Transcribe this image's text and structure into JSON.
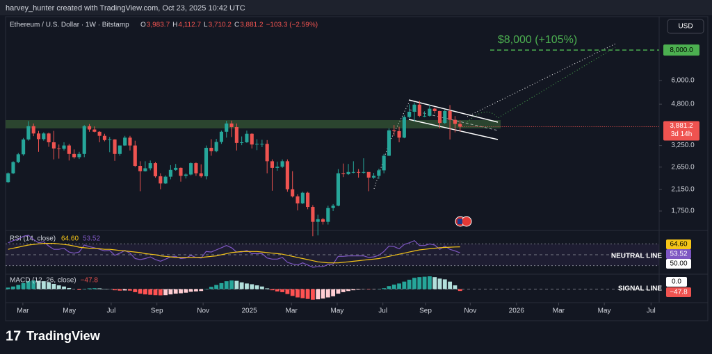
{
  "header": {
    "title": "harvey_hunter created with TradingView.com, Oct 23, 2025 10:42 UTC",
    "brand": "TradingView"
  },
  "chart_data": {
    "type": "candlestick",
    "title": "Ethereum / U.S. Dollar · 1W · Bitstamp",
    "ohlc_legend": [
      {
        "key": "O",
        "text": "3,983.7"
      },
      {
        "key": "H",
        "text": "4,112.7"
      },
      {
        "key": "L",
        "text": "3,710.2"
      },
      {
        "key": "C",
        "text": "3,881.2"
      }
    ],
    "change": "−103.3 (−2.59%)",
    "currency": "USD",
    "categories": [
      null,
      null,
      null,
      null,
      null,
      null,
      null,
      null,
      null,
      null,
      null,
      null,
      null,
      null,
      null,
      null,
      null,
      null,
      null,
      null,
      null,
      null,
      null,
      null,
      null,
      null,
      null,
      null,
      null,
      null,
      null,
      null,
      null,
      null,
      null,
      null,
      null,
      null,
      null,
      null,
      null,
      null,
      null,
      null,
      null,
      null,
      null,
      null,
      null,
      null,
      null,
      null,
      null,
      null,
      null,
      null,
      null,
      null,
      null,
      null,
      null,
      null,
      null,
      null,
      null,
      null,
      null,
      null,
      null,
      null,
      null,
      null,
      null,
      null,
      null,
      null,
      null,
      null,
      null,
      null,
      null,
      null,
      null,
      null,
      null,
      null,
      null,
      null,
      null,
      null
    ],
    "ohlc": [
      [
        2300,
        2520,
        2280,
        2500
      ],
      [
        2500,
        2800,
        2480,
        2780
      ],
      [
        2780,
        3030,
        2750,
        2990
      ],
      [
        2990,
        3490,
        2950,
        3440
      ],
      [
        3440,
        4090,
        3400,
        3900
      ],
      [
        3900,
        4000,
        3550,
        3640
      ],
      [
        3640,
        3730,
        3060,
        3450
      ],
      [
        3450,
        3680,
        3400,
        3640
      ],
      [
        3640,
        3670,
        3210,
        3350
      ],
      [
        3350,
        3730,
        2850,
        3160
      ],
      [
        3160,
        3280,
        2870,
        3150
      ],
      [
        3150,
        3350,
        3100,
        3250
      ],
      [
        3250,
        3300,
        2820,
        3000
      ],
      [
        3000,
        3130,
        2870,
        2910
      ],
      [
        2910,
        3060,
        2860,
        3000
      ],
      [
        3000,
        3940,
        2910,
        3900
      ],
      [
        3900,
        3980,
        3700,
        3780
      ],
      [
        3780,
        3890,
        3680,
        3700
      ],
      [
        3700,
        3720,
        3350,
        3560
      ],
      [
        3560,
        3630,
        3380,
        3420
      ],
      [
        3420,
        3520,
        3050,
        3440
      ],
      [
        3440,
        3450,
        2810,
        3000
      ],
      [
        3000,
        3250,
        2950,
        3250
      ],
      [
        3250,
        3560,
        3240,
        3500
      ],
      [
        3500,
        3560,
        3100,
        3250
      ],
      [
        3250,
        3400,
        2650,
        2680
      ],
      [
        2680,
        2800,
        2110,
        2550
      ],
      [
        2550,
        2800,
        2540,
        2620
      ],
      [
        2620,
        2820,
        2570,
        2750
      ],
      [
        2750,
        2780,
        2400,
        2430
      ],
      [
        2430,
        2500,
        2150,
        2270
      ],
      [
        2270,
        2450,
        2260,
        2420
      ],
      [
        2420,
        2700,
        2360,
        2580
      ],
      [
        2580,
        2730,
        2560,
        2630
      ],
      [
        2630,
        2640,
        2310,
        2440
      ],
      [
        2440,
        2500,
        2380,
        2470
      ],
      [
        2470,
        2770,
        2450,
        2750
      ],
      [
        2750,
        2770,
        2440,
        2500
      ],
      [
        2500,
        2720,
        2400,
        2430
      ],
      [
        2430,
        3250,
        2360,
        3180
      ],
      [
        3180,
        3450,
        2950,
        3080
      ],
      [
        3080,
        3460,
        3050,
        3360
      ],
      [
        3360,
        3740,
        3300,
        3700
      ],
      [
        3700,
        4100,
        3500,
        4000
      ],
      [
        4000,
        4110,
        3520,
        3870
      ],
      [
        3870,
        4000,
        3100,
        3330
      ],
      [
        3330,
        3540,
        3260,
        3350
      ],
      [
        3350,
        3740,
        3330,
        3630
      ],
      [
        3630,
        3650,
        3160,
        3280
      ],
      [
        3280,
        3450,
        3110,
        3300
      ],
      [
        3300,
        3430,
        3200,
        3300
      ],
      [
        3300,
        3420,
        2500,
        2800
      ],
      [
        2800,
        2850,
        2120,
        2630
      ],
      [
        2630,
        2790,
        2560,
        2660
      ],
      [
        2660,
        2850,
        2630,
        2800
      ],
      [
        2800,
        2850,
        2100,
        2150
      ],
      [
        2150,
        2550,
        1990,
        2010
      ],
      [
        2010,
        2050,
        1760,
        1880
      ],
      [
        1880,
        2100,
        1870,
        2080
      ],
      [
        2080,
        2100,
        1780,
        1820
      ],
      [
        1820,
        1850,
        1380,
        1580
      ],
      [
        1580,
        1690,
        1390,
        1620
      ],
      [
        1620,
        1640,
        1540,
        1580
      ],
      [
        1580,
        1840,
        1540,
        1800
      ],
      [
        1800,
        1870,
        1750,
        1840
      ],
      [
        1840,
        2600,
        1830,
        2500
      ],
      [
        2500,
        2740,
        2410,
        2480
      ],
      [
        2480,
        2730,
        2460,
        2530
      ],
      [
        2530,
        2800,
        2500,
        2530
      ],
      [
        2530,
        2600,
        2400,
        2520
      ],
      [
        2520,
        2880,
        2490,
        2530
      ],
      [
        2530,
        2530,
        2110,
        2400
      ],
      [
        2400,
        2510,
        2370,
        2440
      ],
      [
        2440,
        2610,
        2370,
        2570
      ],
      [
        2570,
        3000,
        2500,
        2950
      ],
      [
        2950,
        3820,
        2940,
        3750
      ],
      [
        3750,
        3940,
        3560,
        3720
      ],
      [
        3720,
        3880,
        3350,
        3500
      ],
      [
        3500,
        4330,
        3480,
        4250
      ],
      [
        4250,
        4790,
        4210,
        4470
      ],
      [
        4470,
        4880,
        4080,
        4780
      ],
      [
        4780,
        4950,
        4250,
        4300
      ],
      [
        4300,
        4490,
        4250,
        4300
      ],
      [
        4300,
        4770,
        4270,
        4600
      ],
      [
        4600,
        4650,
        4400,
        4500
      ],
      [
        4500,
        4510,
        3820,
        4020
      ],
      [
        4020,
        4560,
        3980,
        4500
      ],
      [
        4500,
        4760,
        3440,
        4140
      ],
      [
        4140,
        4290,
        3680,
        3985
      ],
      [
        3983.7,
        4112.7,
        3710.2,
        3881.2
      ]
    ],
    "up_color": "#26a69a",
    "down_color": "#ef5350",
    "log_scale": true,
    "xlim": [
      -1.6,
      128.2
    ],
    "xticks": [
      {
        "value": 2.9,
        "label": "Mar"
      },
      {
        "value": 12.05,
        "label": "May"
      },
      {
        "value": 20.3,
        "label": "Jul"
      },
      {
        "value": 29.3,
        "label": "Sep"
      },
      {
        "value": 38.4,
        "label": "Nov"
      },
      {
        "value": 47.5,
        "label": "2025"
      },
      {
        "value": 55.8,
        "label": "Mar"
      },
      {
        "value": 64.8,
        "label": "May"
      },
      {
        "value": 73.8,
        "label": "Jul"
      },
      {
        "value": 82.2,
        "label": "Sep"
      },
      {
        "value": 91,
        "label": "Nov"
      },
      {
        "value": 100.1,
        "label": "2026"
      },
      {
        "value": 108.4,
        "label": "Mar"
      },
      {
        "value": 117.4,
        "label": "May"
      },
      {
        "value": 126.6,
        "label": "Jul"
      }
    ],
    "ylim": [
      1476,
      10900
    ],
    "yticks": [
      {
        "value": 6000,
        "label": "6,000.0"
      },
      {
        "value": 4800,
        "label": "4,800.0"
      },
      {
        "value": 3250,
        "label": "3,250.0"
      },
      {
        "value": 2650,
        "label": "2,650.0"
      },
      {
        "value": 2150,
        "label": "2,150.0"
      },
      {
        "value": 1750,
        "label": "1,750.0"
      }
    ],
    "last_price": {
      "value": 3881.2,
      "label": "3,881.2",
      "countdown": "3d 14h"
    },
    "target": {
      "value": 8000,
      "label": "8,000.0",
      "annotation": "$8,000 (+105%)",
      "color": "#4caf50"
    },
    "rsi": {
      "title": "RSI (14, close)",
      "ylim": [
        16.7,
        91
      ],
      "bands": [
        30,
        70
      ],
      "series": [
        {
          "color": "#7e57c2",
          "last_label": "53.52",
          "values": [
            72,
            76,
            79,
            84,
            86,
            78,
            72,
            74,
            66,
            60,
            60,
            62,
            55,
            53,
            55,
            68,
            65,
            63,
            60,
            57,
            58,
            49,
            53,
            58,
            53,
            43,
            41,
            43,
            46,
            41,
            38,
            42,
            46,
            47,
            43,
            44,
            49,
            45,
            44,
            56,
            55,
            59,
            63,
            67,
            63,
            55,
            55,
            58,
            52,
            52,
            52,
            44,
            42,
            42,
            45,
            36,
            33,
            31,
            35,
            31,
            27,
            28,
            28,
            32,
            33,
            47,
            47,
            48,
            48,
            48,
            48,
            45,
            46,
            49,
            56,
            66,
            65,
            61,
            69,
            72,
            76,
            67,
            67,
            70,
            68,
            60,
            66,
            60,
            57,
            53.52
          ]
        },
        {
          "color": "#f5c518",
          "last_label": "64.60",
          "values": [
            60,
            62,
            64,
            66,
            68,
            69,
            70,
            71,
            71,
            71,
            70,
            69,
            68,
            66,
            64,
            63,
            62,
            62,
            61,
            60,
            60,
            59,
            58,
            57,
            56,
            55,
            54,
            52,
            51,
            50,
            48,
            47,
            46,
            45,
            45,
            45,
            45,
            45,
            45,
            46,
            47,
            48,
            50,
            52,
            54,
            55,
            56,
            56,
            56,
            56,
            55,
            54,
            53,
            52,
            51,
            49,
            47,
            45,
            43,
            41,
            39,
            37,
            36,
            35,
            35,
            35,
            36,
            37,
            38,
            39,
            40,
            41,
            42,
            43,
            45,
            47,
            49,
            51,
            53,
            55,
            57,
            59,
            60,
            61,
            62,
            63,
            63.5,
            64,
            64.3,
            64.6
          ]
        }
      ],
      "level": {
        "value": 50,
        "label": "50.00",
        "name": "NEUTRAL LINE"
      }
    },
    "macd": {
      "title": "MACD (12, 26, close)",
      "ylim": [
        -340,
        360
      ],
      "last_label": "−47.8",
      "values": [
        40,
        70,
        110,
        160,
        210,
        230,
        220,
        210,
        180,
        140,
        100,
        70,
        30,
        0,
        -20,
        10,
        20,
        25,
        20,
        10,
        5,
        -30,
        -40,
        -35,
        -40,
        -80,
        -120,
        -140,
        -150,
        -160,
        -165,
        -160,
        -140,
        -120,
        -110,
        -95,
        -70,
        -60,
        -50,
        10,
        60,
        110,
        160,
        210,
        230,
        220,
        180,
        150,
        130,
        100,
        70,
        20,
        -30,
        -60,
        -80,
        -130,
        -180,
        -220,
        -240,
        -260,
        -280,
        -270,
        -250,
        -220,
        -190,
        -120,
        -80,
        -50,
        -30,
        -15,
        -5,
        -10,
        -5,
        5,
        25,
        80,
        120,
        150,
        200,
        250,
        300,
        320,
        330,
        340,
        320,
        280,
        260,
        200,
        100,
        -47.8
      ],
      "zero": {
        "value": 0,
        "label": "0.0",
        "name": "SIGNAL LINE"
      }
    }
  }
}
